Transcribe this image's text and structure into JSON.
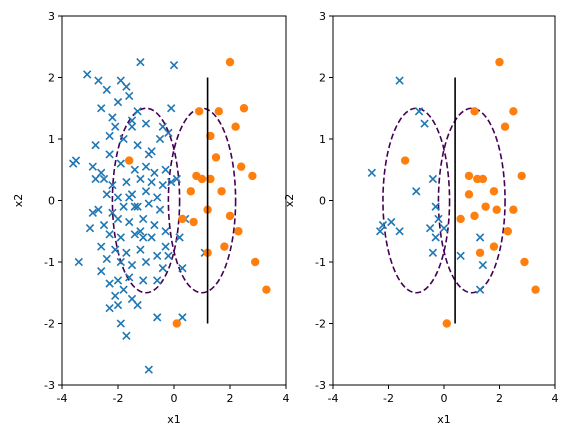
{
  "chart_data": [
    {
      "type": "scatter",
      "xlabel": "x1",
      "ylabel": "x2",
      "xlim": [
        -4,
        4
      ],
      "ylim": [
        -3,
        3
      ],
      "xticks": [
        "-4",
        "-2",
        "0",
        "2",
        "4"
      ],
      "yticks": [
        "3",
        "2",
        "1",
        "0",
        "-1",
        "-2",
        "-3"
      ],
      "grid": false,
      "colors": {
        "class0": "#1f77b4",
        "class1": "#ff7f0e",
        "ellipse": "#440154",
        "boundary": "#000000"
      },
      "series": [
        {
          "marker": "x",
          "points": [
            [
              -1.2,
              2.25
            ],
            [
              0,
              2.2
            ],
            [
              -3.1,
              2.05
            ],
            [
              -2.7,
              1.95
            ],
            [
              -1.9,
              1.95
            ],
            [
              -1.7,
              1.85
            ],
            [
              -2.4,
              1.8
            ],
            [
              -1.6,
              1.7
            ],
            [
              -2.0,
              1.6
            ],
            [
              -2.6,
              1.5
            ],
            [
              -1.3,
              1.45
            ],
            [
              -2.2,
              1.35
            ],
            [
              -1.5,
              1.3
            ],
            [
              -1.0,
              1.25
            ],
            [
              -0.4,
              1.2
            ],
            [
              -0.5,
              1.0
            ],
            [
              -2.3,
              1.05
            ],
            [
              -1.8,
              1.0
            ],
            [
              -1.3,
              0.9
            ],
            [
              -2.8,
              0.9
            ],
            [
              -0.9,
              0.75
            ],
            [
              -3.6,
              0.6
            ],
            [
              -3.5,
              0.65
            ],
            [
              -2.9,
              0.55
            ],
            [
              -2.6,
              0.45
            ],
            [
              -2.5,
              0.35
            ],
            [
              -1.9,
              0.6
            ],
            [
              -1.4,
              0.5
            ],
            [
              -1.0,
              0.55
            ],
            [
              -0.7,
              0.45
            ],
            [
              -0.3,
              0.5
            ],
            [
              -2.2,
              0.25
            ],
            [
              -1.7,
              0.3
            ],
            [
              -1.2,
              0.35
            ],
            [
              -0.8,
              0.3
            ],
            [
              -0.4,
              0.25
            ],
            [
              -2.4,
              0.1
            ],
            [
              -2.0,
              0.05
            ],
            [
              -1.5,
              0.1
            ],
            [
              -1.0,
              0.15
            ],
            [
              -0.6,
              0.05
            ],
            [
              -2.7,
              -0.15
            ],
            [
              -2.2,
              -0.2
            ],
            [
              -1.8,
              -0.1
            ],
            [
              -1.3,
              -0.1
            ],
            [
              -0.9,
              -0.05
            ],
            [
              -0.5,
              -0.15
            ],
            [
              -2.5,
              -0.4
            ],
            [
              -2.0,
              -0.3
            ],
            [
              -1.6,
              -0.35
            ],
            [
              -1.1,
              -0.3
            ],
            [
              -0.7,
              -0.4
            ],
            [
              -3.0,
              -0.45
            ],
            [
              -2.3,
              -0.55
            ],
            [
              -1.9,
              -0.6
            ],
            [
              -1.4,
              -0.55
            ],
            [
              -0.8,
              -0.6
            ],
            [
              -0.3,
              -0.5
            ],
            [
              -2.6,
              -0.75
            ],
            [
              -2.1,
              -0.8
            ],
            [
              -1.7,
              -0.85
            ],
            [
              -1.2,
              -0.8
            ],
            [
              -0.6,
              -0.9
            ],
            [
              -2.4,
              -0.95
            ],
            [
              -1.9,
              -1.0
            ],
            [
              -1.5,
              -1.05
            ],
            [
              -1.0,
              -1.0
            ],
            [
              -0.4,
              -1.1
            ],
            [
              -3.4,
              -1.0
            ],
            [
              -2.6,
              -1.15
            ],
            [
              -2.0,
              -1.3
            ],
            [
              -1.6,
              -1.25
            ],
            [
              -1.1,
              -1.3
            ],
            [
              -0.6,
              -1.3
            ],
            [
              -2.3,
              -1.35
            ],
            [
              -1.8,
              -1.45
            ],
            [
              -2.1,
              -1.55
            ],
            [
              -2.0,
              -1.7
            ],
            [
              -1.5,
              -1.6
            ],
            [
              -2.3,
              -1.75
            ],
            [
              -1.9,
              -2.0
            ],
            [
              -1.7,
              -2.2
            ],
            [
              0.3,
              -1.9
            ],
            [
              1.1,
              -0.85
            ],
            [
              -0.2,
              1.1
            ],
            [
              -2.8,
              0.35
            ],
            [
              -1.6,
              0.05
            ],
            [
              -1.1,
              -0.6
            ],
            [
              -0.3,
              -0.75
            ],
            [
              -0.1,
              0.3
            ],
            [
              0.1,
              0.35
            ],
            [
              -0.2,
              -0.9
            ],
            [
              -2.3,
              0.75
            ],
            [
              -1.4,
              -0.1
            ],
            [
              -0.8,
              0.8
            ],
            [
              -1.3,
              -1.7
            ],
            [
              -2.9,
              -0.2
            ],
            [
              -0.1,
              1.5
            ],
            [
              0.2,
              -0.6
            ],
            [
              -0.9,
              -2.75
            ],
            [
              0.4,
              -0.3
            ],
            [
              -1.5,
              1.2
            ],
            [
              -2.1,
              1.2
            ],
            [
              -0.6,
              -1.9
            ],
            [
              0.3,
              -1.1
            ],
            [
              -1.2,
              -0.5
            ]
          ]
        },
        {
          "marker": "o",
          "points": [
            [
              2.0,
              2.25
            ],
            [
              2.5,
              1.5
            ],
            [
              0.9,
              1.45
            ],
            [
              2.2,
              1.2
            ],
            [
              1.5,
              0.7
            ],
            [
              -1.6,
              0.65
            ],
            [
              0.8,
              0.4
            ],
            [
              1.0,
              0.35
            ],
            [
              1.3,
              0.35
            ],
            [
              2.8,
              0.4
            ],
            [
              1.7,
              0.15
            ],
            [
              0.6,
              0.15
            ],
            [
              1.2,
              -0.15
            ],
            [
              2.0,
              -0.25
            ],
            [
              0.3,
              -0.3
            ],
            [
              2.3,
              -0.5
            ],
            [
              1.8,
              -0.75
            ],
            [
              1.2,
              -0.85
            ],
            [
              2.9,
              -1.0
            ],
            [
              3.3,
              -1.45
            ],
            [
              0.1,
              -2.0
            ],
            [
              1.3,
              1.05
            ],
            [
              1.6,
              1.45
            ],
            [
              0.7,
              -0.35
            ],
            [
              2.4,
              0.55
            ]
          ]
        }
      ],
      "ellipses": [
        {
          "cx": -1.0,
          "cy": 0.0,
          "rx": 1.2,
          "ry": 1.5
        },
        {
          "cx": 1.0,
          "cy": 0.0,
          "rx": 1.2,
          "ry": 1.5
        }
      ],
      "boundary": {
        "x": 1.2,
        "y": [
          -2,
          2
        ]
      }
    },
    {
      "type": "scatter",
      "xlabel": "x1",
      "ylabel": "x2",
      "xlim": [
        -4,
        4
      ],
      "ylim": [
        -3,
        3
      ],
      "xticks": [
        "-4",
        "-2",
        "0",
        "2",
        "4"
      ],
      "yticks": [
        "3",
        "2",
        "1",
        "0",
        "-1",
        "-2",
        "-3"
      ],
      "grid": false,
      "colors": {
        "class0": "#1f77b4",
        "class1": "#ff7f0e",
        "ellipse": "#440154",
        "boundary": "#000000"
      },
      "series": [
        {
          "marker": "x",
          "points": [
            [
              -1.6,
              1.95
            ],
            [
              -0.9,
              1.45
            ],
            [
              -0.7,
              1.25
            ],
            [
              -2.6,
              0.45
            ],
            [
              -1.0,
              0.15
            ],
            [
              -0.4,
              0.35
            ],
            [
              -0.3,
              -0.1
            ],
            [
              -0.2,
              -0.3
            ],
            [
              -2.2,
              -0.4
            ],
            [
              -2.3,
              -0.5
            ],
            [
              -1.9,
              -0.35
            ],
            [
              -1.6,
              -0.5
            ],
            [
              -0.5,
              -0.45
            ],
            [
              0.0,
              -0.45
            ],
            [
              -0.3,
              -0.6
            ],
            [
              1.3,
              -0.6
            ],
            [
              -0.4,
              -0.85
            ],
            [
              0.6,
              -0.9
            ],
            [
              1.4,
              -1.05
            ],
            [
              1.3,
              -1.45
            ]
          ]
        },
        {
          "marker": "o",
          "points": [
            [
              2.0,
              2.25
            ],
            [
              1.1,
              1.45
            ],
            [
              2.5,
              1.45
            ],
            [
              2.2,
              1.2
            ],
            [
              -1.4,
              0.65
            ],
            [
              0.9,
              0.4
            ],
            [
              1.2,
              0.35
            ],
            [
              1.4,
              0.35
            ],
            [
              2.8,
              0.4
            ],
            [
              1.8,
              0.15
            ],
            [
              0.9,
              0.1
            ],
            [
              1.9,
              -0.15
            ],
            [
              2.5,
              -0.15
            ],
            [
              1.1,
              -0.25
            ],
            [
              0.6,
              -0.3
            ],
            [
              2.3,
              -0.5
            ],
            [
              1.8,
              -0.75
            ],
            [
              1.3,
              -0.85
            ],
            [
              2.9,
              -1.0
            ],
            [
              3.3,
              -1.45
            ],
            [
              0.1,
              -2.0
            ],
            [
              1.5,
              -0.1
            ]
          ]
        }
      ],
      "ellipses": [
        {
          "cx": -1.0,
          "cy": 0.0,
          "rx": 1.2,
          "ry": 1.5
        },
        {
          "cx": 1.0,
          "cy": 0.0,
          "rx": 1.2,
          "ry": 1.5
        }
      ],
      "boundary": {
        "x": 0.4,
        "y": [
          -2,
          2
        ]
      }
    }
  ]
}
